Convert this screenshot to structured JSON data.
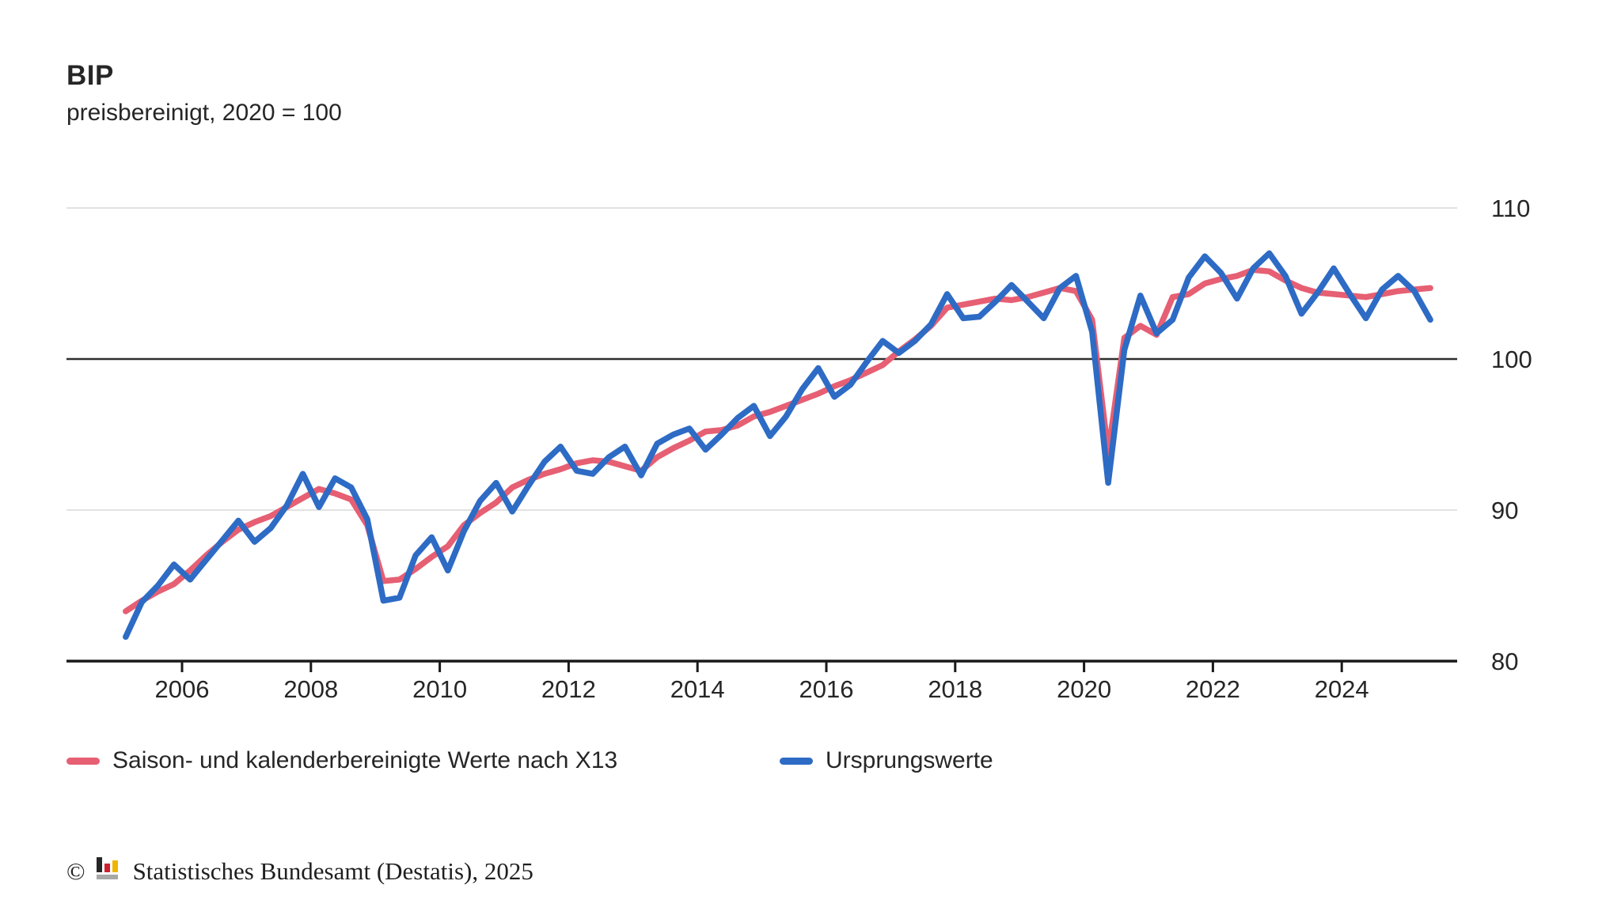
{
  "header": {
    "title": "BIP",
    "subtitle": "preisbereinigt, 2020 = 100"
  },
  "chart_data": {
    "type": "line",
    "title": "BIP",
    "subtitle": "preisbereinigt, 2020 = 100",
    "x_unit": "quarter",
    "x_start": "2005-Q1",
    "x_end": "2025-Q2",
    "x_ticks": [
      2006,
      2008,
      2010,
      2012,
      2014,
      2016,
      2018,
      2020,
      2022,
      2024
    ],
    "y_ticks": [
      110,
      100,
      90,
      80
    ],
    "ylim": [
      80,
      110
    ],
    "baseline_value": 100,
    "grid": "horizontal",
    "legend_position": "bottom",
    "series": [
      {
        "name": "Saison- und kalenderbereinigte Werte nach X13",
        "color": "#E65F73",
        "values": [
          83.3,
          84.0,
          84.6,
          85.1,
          86.0,
          87.0,
          87.9,
          88.7,
          89.2,
          89.6,
          90.2,
          90.8,
          91.4,
          91.1,
          90.7,
          89.0,
          85.3,
          85.4,
          86.1,
          86.9,
          87.6,
          89.0,
          89.8,
          90.5,
          91.5,
          92.0,
          92.4,
          92.7,
          93.1,
          93.3,
          93.2,
          92.9,
          92.6,
          93.5,
          94.1,
          94.6,
          95.2,
          95.3,
          95.6,
          96.2,
          96.5,
          96.9,
          97.3,
          97.7,
          98.2,
          98.6,
          99.1,
          99.6,
          100.5,
          101.3,
          102.2,
          103.4,
          103.6,
          103.8,
          104.0,
          103.9,
          104.1,
          104.4,
          104.7,
          104.5,
          102.6,
          93.8,
          101.4,
          102.2,
          101.6,
          104.1,
          104.3,
          105.0,
          105.3,
          105.5,
          105.9,
          105.8,
          105.2,
          104.7,
          104.4,
          104.3,
          104.2,
          104.1,
          104.3,
          104.5,
          104.6,
          104.7
        ]
      },
      {
        "name": "Ursprungswerte",
        "color": "#2D6BC5",
        "values": [
          81.6,
          83.9,
          85.0,
          86.4,
          85.4,
          86.7,
          88.0,
          89.3,
          87.9,
          88.8,
          90.3,
          92.4,
          90.2,
          92.1,
          91.5,
          89.4,
          84.0,
          84.2,
          87.0,
          88.2,
          86.0,
          88.6,
          90.6,
          91.8,
          89.9,
          91.6,
          93.2,
          94.2,
          92.6,
          92.4,
          93.5,
          94.2,
          92.3,
          94.4,
          95.0,
          95.4,
          94.0,
          95.0,
          96.1,
          96.9,
          94.9,
          96.2,
          98.0,
          99.4,
          97.5,
          98.3,
          99.8,
          101.2,
          100.4,
          101.2,
          102.3,
          104.3,
          102.7,
          102.8,
          103.8,
          104.9,
          103.8,
          102.7,
          104.7,
          105.5,
          101.8,
          91.8,
          100.6,
          104.2,
          101.7,
          102.6,
          105.4,
          106.8,
          105.7,
          104.0,
          106.0,
          107.0,
          105.5,
          103.0,
          104.4,
          106.0,
          104.3,
          102.7,
          104.6,
          105.5,
          104.5,
          102.6
        ]
      }
    ]
  },
  "legend": {
    "items": [
      {
        "label": "Saison- und kalenderbereinigte Werte nach X13",
        "color": "#E65F73"
      },
      {
        "label": "Ursprungswerte",
        "color": "#2D6BC5"
      }
    ]
  },
  "footer": {
    "copyright": "©",
    "source": "Statistisches Bundesamt (Destatis), 2025",
    "logo_colors": {
      "bar1": "#262626",
      "bar2": "#D01F2E",
      "bar3": "#F0B500",
      "base": "#A8A8A8"
    }
  },
  "colors": {
    "grid": "#D8D8D8",
    "baseline": "#2E2E2E",
    "axis": "#1A1A1A",
    "text": "#262626"
  }
}
